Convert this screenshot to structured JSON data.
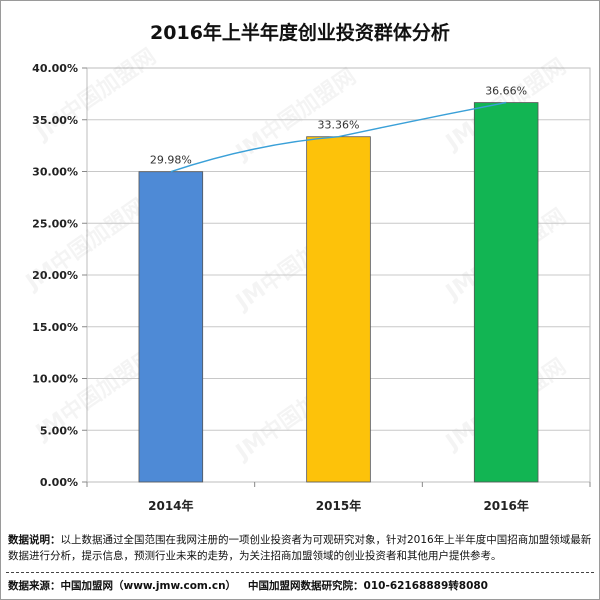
{
  "chart_data": {
    "type": "bar",
    "title": "2016年上半年度创业投资群体分析",
    "categories": [
      "2014年",
      "2015年",
      "2016年"
    ],
    "values": [
      29.98,
      33.36,
      36.66
    ],
    "value_labels": [
      "29.98%",
      "33.36%",
      "36.66%"
    ],
    "ylim": [
      0,
      40
    ],
    "yticks": [
      "0.00%",
      "5.00%",
      "10.00%",
      "15.00%",
      "20.00%",
      "25.00%",
      "30.00%",
      "35.00%",
      "40.00%"
    ],
    "xlabel": "",
    "ylabel": "",
    "grid": true,
    "trendline": true,
    "colors": [
      "#4e8ad6",
      "#fdc20a",
      "#12b553"
    ],
    "trend_color": "#3aa0d8"
  },
  "note": {
    "label": "数据说明：",
    "text": "以上数据通过全国范围在我网注册的一项创业投资者为可观研究对象，针对2016年上半年度中国招商加盟领域最新数据进行分析，提示信息，预测行业未来的走势，为关注招商加盟领域的创业投资者和其他用户提供参考。"
  },
  "source": {
    "left": "数据来源：中国加盟网（www.jmw.com.cn）",
    "right": "中国加盟网数据研究院：010-62168889转8080"
  },
  "watermark": {
    "text": "JM中国加盟网"
  }
}
